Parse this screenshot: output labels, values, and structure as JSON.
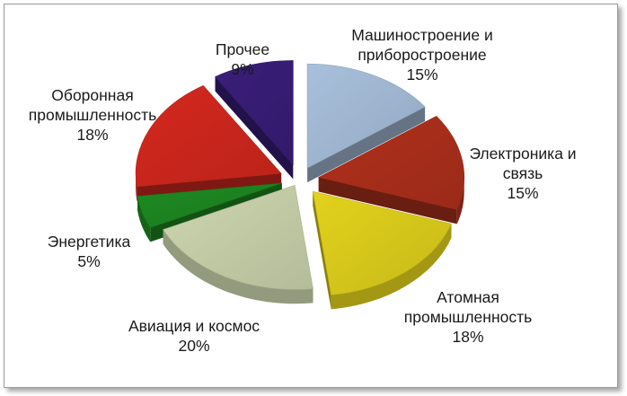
{
  "chart_data": {
    "type": "pie",
    "title": "",
    "categories": [
      "Машиностроение и приборостроение",
      "Электроника и связь",
      "Атомная промышленность",
      "Авиация и космос",
      "Энергетика",
      "Оборонная промышленность",
      "Прочее"
    ],
    "values": [
      15,
      15,
      18,
      20,
      5,
      18,
      9
    ],
    "slices": [
      {
        "lines": [
          "Машиностроение и",
          "приборостроение"
        ],
        "value_label": "15%",
        "color": "#a8c0dc"
      },
      {
        "lines": [
          "Электроника и",
          "связь"
        ],
        "value_label": "15%",
        "color": "#b0301c"
      },
      {
        "lines": [
          "Атомная",
          "промышленность"
        ],
        "value_label": "18%",
        "color": "#e2d21c"
      },
      {
        "lines": [
          "Авиация и космос"
        ],
        "value_label": "20%",
        "color": "#ccd6ae"
      },
      {
        "lines": [
          "Энергетика"
        ],
        "value_label": "5%",
        "color": "#1e8a22"
      },
      {
        "lines": [
          "Оборонная",
          "промышленность"
        ],
        "value_label": "18%",
        "color": "#d4281e"
      },
      {
        "lines": [
          "Прочее"
        ],
        "value_label": "9%",
        "color": "#3a1e7a"
      }
    ],
    "style": "exploded 3D pie"
  }
}
